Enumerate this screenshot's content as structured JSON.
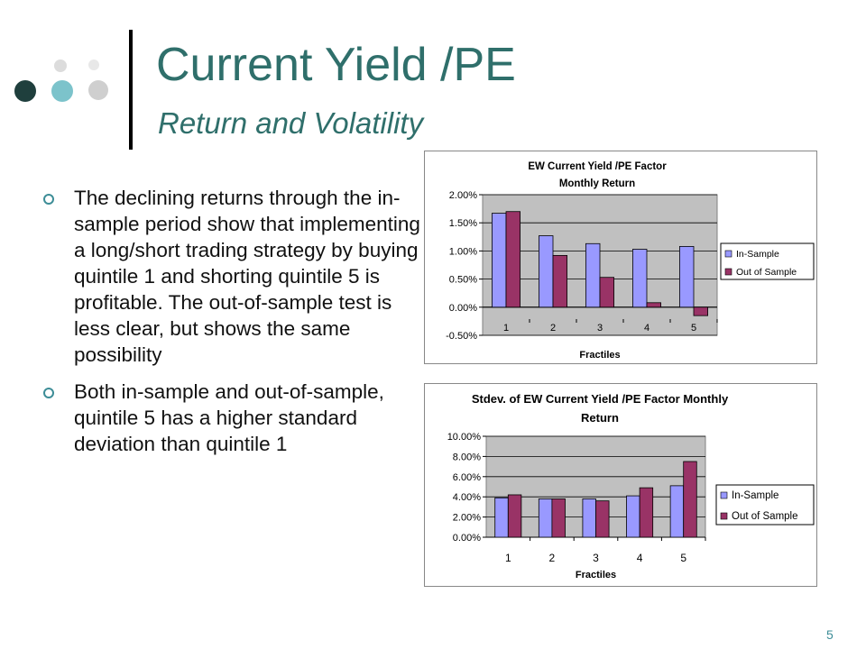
{
  "slide": {
    "title": "Current Yield /PE",
    "subtitle": "Return and Volatility",
    "page_number": "5",
    "bullets": [
      "The declining returns through the in-sample period show that implementing a long/short trading strategy by buying quintile 1 and shorting quintile 5 is profitable. The out-of-sample test is less clear, but shows the same possibility",
      "Both in-sample and out-of-sample, quintile 5 has a higher standard deviation than quintile 1"
    ]
  },
  "decor": {
    "dot_colors": [
      "#1f3f3d",
      "#7cc3cb",
      "#cfcfcf",
      "#dcdcdc",
      "#e8e8e8"
    ],
    "accent": "#2f6f6b"
  },
  "chart_data": [
    {
      "type": "bar",
      "title_lines": [
        "EW Current Yield /PE Factor",
        "Monthly Return"
      ],
      "xlabel": "Fractiles",
      "ylabel": "",
      "categories": [
        "1",
        "2",
        "3",
        "4",
        "5"
      ],
      "series": [
        {
          "name": "In-Sample",
          "color": "#9999ff",
          "values": [
            1.67,
            1.27,
            1.13,
            1.03,
            1.08
          ]
        },
        {
          "name": "Out of Sample",
          "color": "#993366",
          "values": [
            1.7,
            0.92,
            0.53,
            0.08,
            -0.15
          ]
        }
      ],
      "ylim": [
        -0.5,
        2.0
      ],
      "yticks": [
        -0.5,
        0.0,
        0.5,
        1.0,
        1.5,
        2.0
      ],
      "ytick_labels": [
        "-0.50%",
        "0.00%",
        "0.50%",
        "1.00%",
        "1.50%",
        "2.00%"
      ],
      "plot_background": "#c0c0c0",
      "grid": true,
      "legend": "right"
    },
    {
      "type": "bar",
      "title_lines": [
        "Stdev. of EW Current Yield /PE Factor Monthly",
        "Return"
      ],
      "xlabel": "Fractiles",
      "ylabel": "",
      "categories": [
        "1",
        "2",
        "3",
        "4",
        "5"
      ],
      "series": [
        {
          "name": "In-Sample",
          "color": "#9999ff",
          "values": [
            3.9,
            3.8,
            3.8,
            4.1,
            5.1
          ]
        },
        {
          "name": "Out of Sample",
          "color": "#993366",
          "values": [
            4.2,
            3.8,
            3.6,
            4.9,
            7.5
          ]
        }
      ],
      "ylim": [
        0,
        10
      ],
      "yticks": [
        0,
        2,
        4,
        6,
        8,
        10
      ],
      "ytick_labels": [
        "0.00%",
        "2.00%",
        "4.00%",
        "6.00%",
        "8.00%",
        "10.00%"
      ],
      "plot_background": "#c0c0c0",
      "grid": true,
      "legend": "right"
    }
  ]
}
